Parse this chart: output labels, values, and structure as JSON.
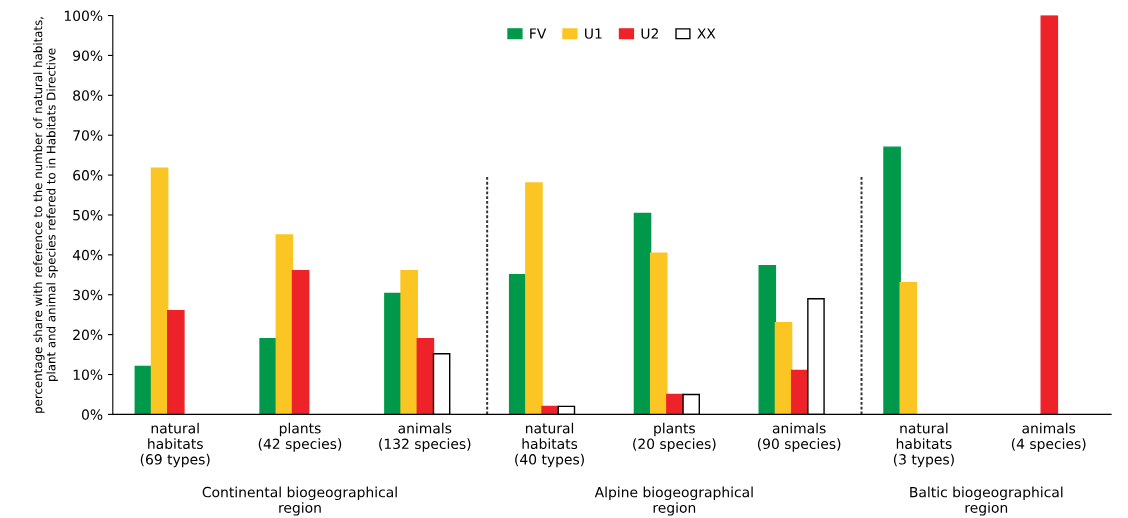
{
  "chart_data": {
    "type": "bar",
    "ylabel": "percentage share with reference to the number of natural habitats,\nplant and animal species refered to in Habitats Directive",
    "categories": [
      "natural\nhabitats\n(69 types)",
      "plants\n(42 species)",
      "animals\n(132 species)",
      "natural\nhabitats\n(40 types)",
      "plants\n(20 species)",
      "animals\n(90 species)",
      "natural\nhabitats\n(3 types)",
      "animals\n(4 species)"
    ],
    "series": [
      {
        "name": "FV",
        "color": "#00984a",
        "values": [
          12,
          19,
          30.3,
          35,
          50.4,
          37.3,
          67,
          null
        ]
      },
      {
        "name": "U1",
        "color": "#fbc623",
        "values": [
          61.7,
          45,
          36,
          58,
          40.4,
          23,
          33,
          null
        ]
      },
      {
        "name": "U2",
        "color": "#ee2229",
        "values": [
          26,
          36,
          19,
          2,
          5,
          11,
          null,
          100
        ]
      },
      {
        "name": "XX",
        "color": "#ffffff",
        "values": [
          null,
          null,
          15.2,
          2,
          5,
          29,
          null,
          null
        ]
      }
    ],
    "ylim": [
      0,
      100
    ],
    "yticks": [
      {
        "value": 0,
        "label": "0%"
      },
      {
        "value": 10,
        "label": "10%"
      },
      {
        "value": 20,
        "label": "20%"
      },
      {
        "value": 30,
        "label": "30%"
      },
      {
        "value": 40,
        "label": "40%"
      },
      {
        "value": 50,
        "label": "50%"
      },
      {
        "value": 60,
        "label": "60%"
      },
      {
        "value": 70,
        "label": "70%"
      },
      {
        "value": 80,
        "label": "80%"
      },
      {
        "value": 90,
        "label": "90%"
      },
      {
        "value": 100,
        "label": "100%"
      }
    ],
    "annotations": [
      "Continental biogeographical\nregion",
      "Alpine biogeographical\nregion",
      "Baltic biogeographical\nregion"
    ],
    "legend": "top",
    "grid": false
  }
}
